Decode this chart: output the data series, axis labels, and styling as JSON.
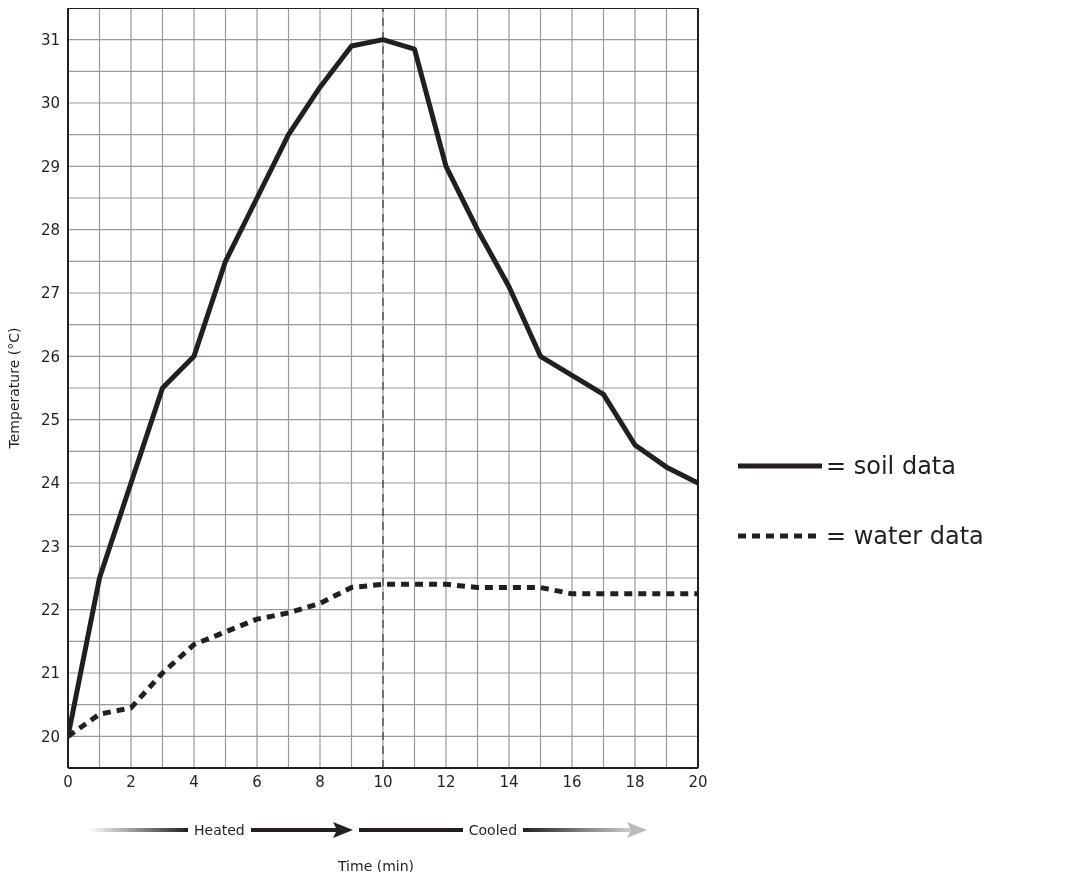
{
  "chart_data": {
    "type": "line",
    "xlabel": "Time (min)",
    "ylabel": "Temperature (°C)",
    "x": [
      0,
      1,
      2,
      3,
      4,
      5,
      6,
      7,
      8,
      9,
      10,
      11,
      12,
      13,
      14,
      15,
      16,
      17,
      18,
      19,
      20
    ],
    "series": [
      {
        "name": "= soil data",
        "color": "#231f20",
        "line_style": "solid",
        "values": [
          20,
          22.5,
          24,
          25.5,
          26,
          27.5,
          28.5,
          29.5,
          30.25,
          30.9,
          31,
          30.85,
          29,
          28,
          27.1,
          26,
          25.7,
          25.4,
          24.6,
          24.25,
          24
        ]
      },
      {
        "name": "= water data",
        "color": "#231f20",
        "line_style": "dashed",
        "values": [
          20,
          20.35,
          20.45,
          21,
          21.45,
          21.65,
          21.85,
          21.95,
          22.1,
          22.35,
          22.4,
          22.4,
          22.4,
          22.35,
          22.35,
          22.35,
          22.25,
          22.25,
          22.25,
          22.25,
          22.25
        ]
      }
    ],
    "xlim": [
      0,
      20
    ],
    "xticks": [
      0,
      {
        "value": 1,
        "label": null
      },
      2,
      {
        "value": 3,
        "label": null
      },
      4,
      {
        "value": 5,
        "label": null
      },
      6,
      {
        "value": 7,
        "label": null
      },
      8,
      {
        "value": 9,
        "label": null
      },
      10,
      {
        "value": 11,
        "label": null
      },
      12,
      {
        "value": 13,
        "label": null
      },
      14,
      {
        "value": 15,
        "label": null
      },
      16,
      {
        "value": 17,
        "label": null
      },
      18,
      {
        "value": 19,
        "label": null
      },
      20
    ],
    "ylim": [
      19.5,
      31.5
    ],
    "yticks": [
      {
        "value": 19.5,
        "label": null
      },
      20,
      {
        "value": 20.5,
        "label": null
      },
      21,
      {
        "value": 21.5,
        "label": null
      },
      22,
      {
        "value": 22.5,
        "label": null
      },
      23,
      {
        "value": 23.5,
        "label": null
      },
      24,
      {
        "value": 24.5,
        "label": null
      },
      25,
      {
        "value": 25.5,
        "label": null
      },
      26,
      {
        "value": 26.5,
        "label": null
      },
      27,
      {
        "value": 27.5,
        "label": null
      },
      28,
      {
        "value": 28.5,
        "label": null
      },
      29,
      {
        "value": 29.5,
        "label": null
      },
      30,
      {
        "value": 30.5,
        "label": null
      },
      31,
      {
        "value": 31.5,
        "label": null
      }
    ],
    "grid": true,
    "legend": "right",
    "marker": "none",
    "ref_lines": [
      {
        "axis": "x",
        "value": 10,
        "color": "#231f20",
        "line_style": "dashed"
      }
    ],
    "annotations": [
      "Heated",
      "Cooled"
    ]
  }
}
